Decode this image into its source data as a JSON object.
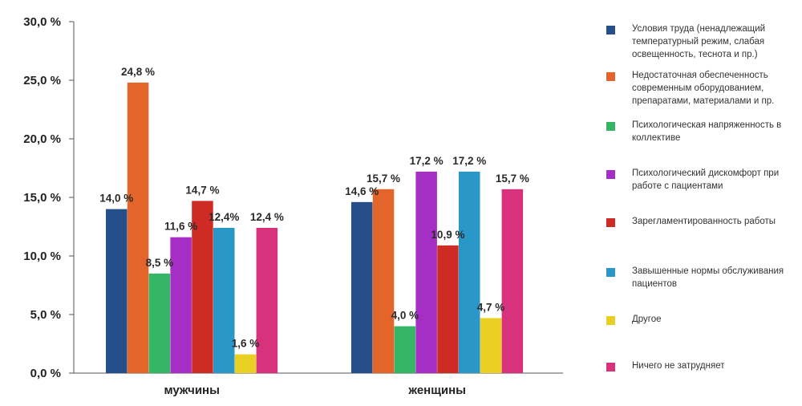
{
  "chart_data": {
    "type": "bar",
    "categories": [
      "мужчины",
      "женщины"
    ],
    "ylim": [
      0,
      30
    ],
    "yticks": [
      "0,0 %",
      "5,0 %",
      "10,0 %",
      "15,0 %",
      "20,0 %",
      "25,0 %",
      "30,0 %"
    ],
    "ytick_values": [
      0,
      5,
      10,
      15,
      20,
      25,
      30
    ],
    "grid": false,
    "legend_position": "right",
    "series": [
      {
        "name": "Условия труда (ненадлежащий температурный режим, слабая освещенность, теснота и пр.)",
        "color": "#264f8a",
        "values": [
          14.0,
          14.6
        ],
        "labels": [
          "14,0 %",
          "14,6 %"
        ]
      },
      {
        "name": "Недостаточная обеспеченность современным оборудованием, препаратами, материалами и пр.",
        "color": "#e3652a",
        "values": [
          24.8,
          15.7
        ],
        "labels": [
          "24,8 %",
          "15,7 %"
        ]
      },
      {
        "name": "Психологическая напряженность в коллективе",
        "color": "#35b565",
        "values": [
          8.5,
          4.0
        ],
        "labels": [
          "8,5 %",
          "4,0 %"
        ]
      },
      {
        "name": "Психологический дискомфорт при работе с пациентами",
        "color": "#a52fc4",
        "values": [
          11.6,
          17.2
        ],
        "labels": [
          "11,6 %",
          "17,2 %"
        ]
      },
      {
        "name": "Зарегламентированность работы",
        "color": "#cf2b25",
        "values": [
          14.7,
          10.9
        ],
        "labels": [
          "14,7 %",
          "10,9 %"
        ]
      },
      {
        "name": "Завышенные нормы обслуживания пациентов",
        "color": "#2a97c9",
        "values": [
          12.4,
          17.2
        ],
        "labels": [
          "12,4%",
          "17,2 %"
        ]
      },
      {
        "name": "Другое",
        "color": "#e8cf21",
        "values": [
          1.6,
          4.7
        ],
        "labels": [
          "1,6 %",
          "4,7 %"
        ]
      },
      {
        "name": "Ничего не затрудняет",
        "color": "#d8327d",
        "values": [
          12.4,
          15.7
        ],
        "labels": [
          "12,4 %",
          "15,7 %"
        ]
      }
    ]
  }
}
